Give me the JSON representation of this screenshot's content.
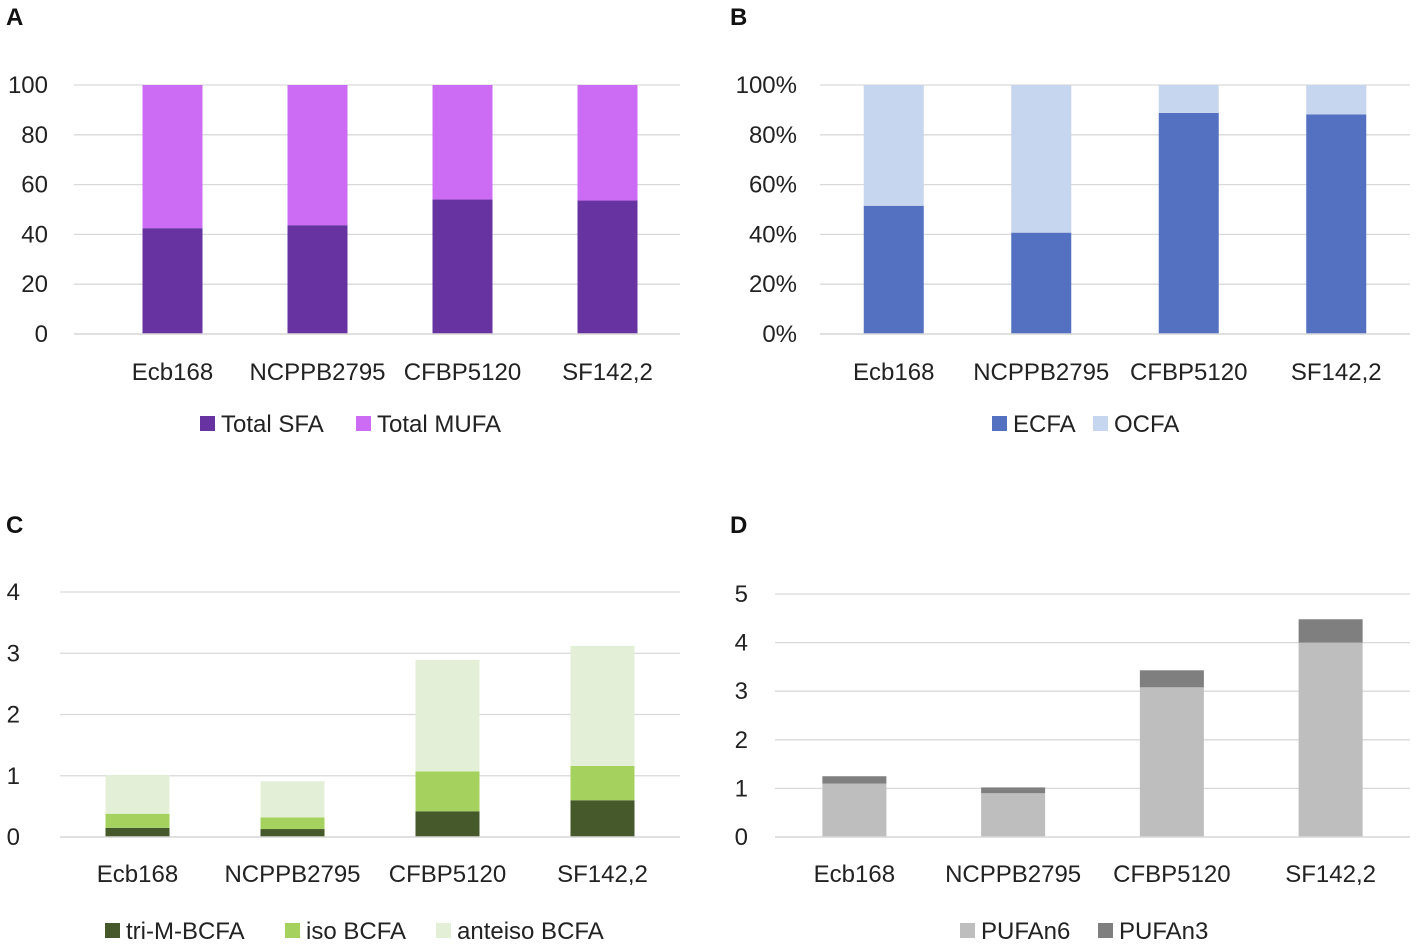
{
  "chart_data": [
    {
      "panel": "A",
      "type": "bar",
      "stacked": true,
      "categories": [
        "Ecb168",
        "NCPPB2795",
        "CFBP5120",
        "SF142,2"
      ],
      "series": [
        {
          "name": "Total SFA",
          "color": "#6633a0",
          "values": [
            42.5,
            43.7,
            54.0,
            53.6
          ]
        },
        {
          "name": "Total MUFA",
          "color": "#cc6cf5",
          "values": [
            57.5,
            56.3,
            46.0,
            46.4
          ]
        }
      ],
      "ylim": [
        0,
        100
      ],
      "yticks": [
        0,
        20,
        40,
        60,
        80,
        100
      ],
      "ytick_labels": [
        "0",
        "20",
        "40",
        "60",
        "80",
        "100"
      ],
      "grid": true,
      "legend": "bottom"
    },
    {
      "panel": "B",
      "type": "bar",
      "stacked": true,
      "categories": [
        "Ecb168",
        "NCPPB2795",
        "CFBP5120",
        "SF142,2"
      ],
      "series": [
        {
          "name": "ECFA",
          "color": "#5470c1",
          "values": [
            51.5,
            40.7,
            88.8,
            88.2
          ]
        },
        {
          "name": "OCFA",
          "color": "#c5d6ee",
          "values": [
            48.5,
            59.3,
            11.2,
            11.8
          ]
        }
      ],
      "ylim": [
        0,
        100
      ],
      "yticks": [
        0,
        20,
        40,
        60,
        80,
        100
      ],
      "ytick_labels": [
        "0%",
        "20%",
        "40%",
        "60%",
        "80%",
        "100%"
      ],
      "grid": true,
      "legend": "bottom"
    },
    {
      "panel": "C",
      "type": "bar",
      "stacked": true,
      "categories": [
        "Ecb168",
        "NCPPB2795",
        "CFBP5120",
        "SF142,2"
      ],
      "series": [
        {
          "name": "tri-M-BCFA",
          "color": "#45592a",
          "values": [
            0.15,
            0.13,
            0.42,
            0.6
          ]
        },
        {
          "name": "iso BCFA",
          "color": "#a5d25f",
          "values": [
            0.23,
            0.19,
            0.65,
            0.56
          ]
        },
        {
          "name": "anteiso BCFA",
          "color": "#e3f0d7",
          "values": [
            0.63,
            0.59,
            1.82,
            1.96
          ]
        }
      ],
      "ylim": [
        0,
        4
      ],
      "yticks": [
        0,
        1,
        2,
        3,
        4
      ],
      "ytick_labels": [
        "0",
        "1",
        "2",
        "3",
        "4"
      ],
      "grid": true,
      "legend": "bottom"
    },
    {
      "panel": "D",
      "type": "bar",
      "stacked": true,
      "categories": [
        "Ecb168",
        "NCPPB2795",
        "CFBP5120",
        "SF142,2"
      ],
      "series": [
        {
          "name": "PUFAn6",
          "color": "#bebebe",
          "values": [
            1.1,
            0.9,
            3.08,
            4.0
          ]
        },
        {
          "name": "PUFAn3",
          "color": "#7f7f7f",
          "values": [
            0.15,
            0.12,
            0.35,
            0.48
          ]
        }
      ],
      "ylim": [
        0,
        5
      ],
      "yticks": [
        0,
        1,
        2,
        3,
        4,
        5
      ],
      "ytick_labels": [
        "0",
        "1",
        "2",
        "3",
        "4",
        "5"
      ],
      "grid": true,
      "legend": "bottom"
    }
  ]
}
